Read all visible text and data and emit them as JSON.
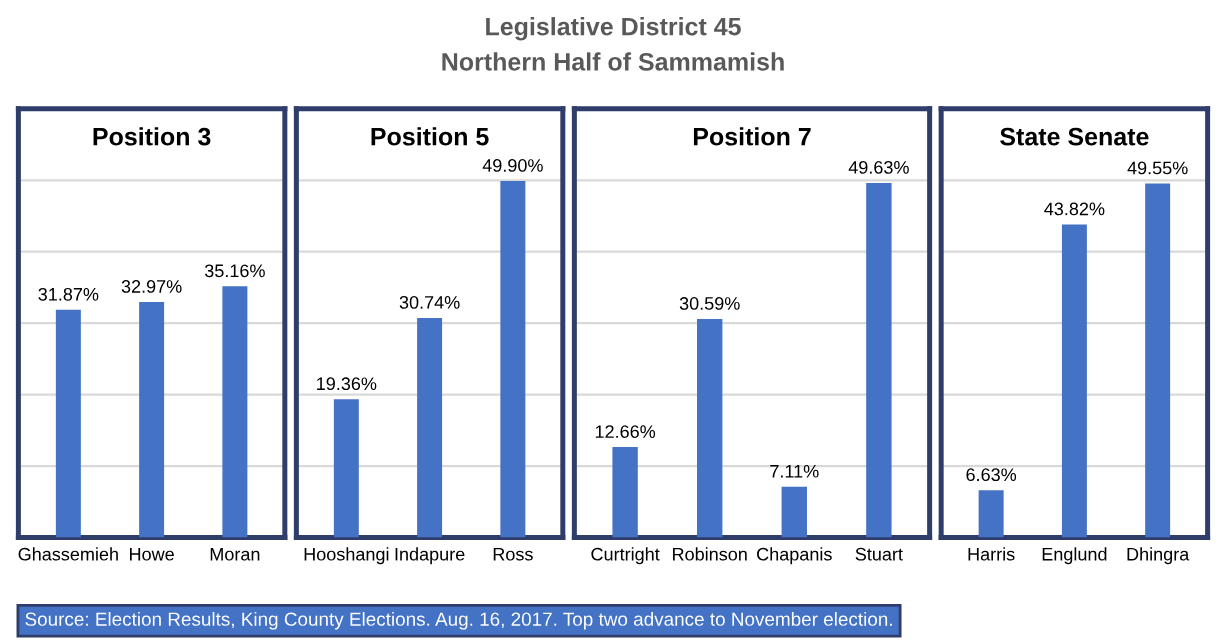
{
  "chart_data": [
    {
      "type": "bar",
      "title": "Position 3",
      "categories": [
        "Ghassemieh",
        "Howe",
        "Moran"
      ],
      "values": [
        31.87,
        32.97,
        35.16
      ],
      "value_labels": [
        "31.87%",
        "32.97%",
        "35.16%"
      ],
      "color": "#4472c4",
      "ylim": [
        0,
        60
      ],
      "yticks": [
        {
          "value": 0,
          "label": null
        },
        {
          "value": 10,
          "label": null
        },
        {
          "value": 20,
          "label": null
        },
        {
          "value": 30,
          "label": null
        },
        {
          "value": 40,
          "label": null
        },
        {
          "value": 50,
          "label": null
        }
      ],
      "tick_labels": "x",
      "grid": "y",
      "annotations": [
        "Legislative District 45",
        "Northern Half of Sammamish"
      ]
    },
    {
      "type": "bar",
      "title": "Position 5",
      "categories": [
        "Hooshangi",
        "Indapure",
        "Ross"
      ],
      "values": [
        19.36,
        30.74,
        49.9
      ],
      "value_labels": [
        "19.36%",
        "30.74%",
        "49.90%"
      ],
      "color": "#4472c4",
      "ylim": [
        0,
        60
      ],
      "yticks": [
        {
          "value": 0,
          "label": null
        },
        {
          "value": 10,
          "label": null
        },
        {
          "value": 20,
          "label": null
        },
        {
          "value": 30,
          "label": null
        },
        {
          "value": 40,
          "label": null
        },
        {
          "value": 50,
          "label": null
        }
      ],
      "tick_labels": "x",
      "grid": "y"
    },
    {
      "type": "bar",
      "title": "Position 7",
      "categories": [
        "Curtright",
        "Robinson",
        "Chapanis",
        "Stuart"
      ],
      "values": [
        12.66,
        30.59,
        7.11,
        49.63
      ],
      "value_labels": [
        "12.66%",
        "30.59%",
        "7.11%",
        "49.63%"
      ],
      "color": "#4472c4",
      "ylim": [
        0,
        60
      ],
      "yticks": [
        {
          "value": 0,
          "label": null
        },
        {
          "value": 10,
          "label": null
        },
        {
          "value": 20,
          "label": null
        },
        {
          "value": 30,
          "label": null
        },
        {
          "value": 40,
          "label": null
        },
        {
          "value": 50,
          "label": null
        }
      ],
      "tick_labels": "x",
      "grid": "y"
    },
    {
      "type": "bar",
      "title": "State Senate",
      "categories": [
        "Harris",
        "Englund",
        "Dhingra"
      ],
      "values": [
        6.63,
        43.82,
        49.55
      ],
      "value_labels": [
        "6.63%",
        "43.82%",
        "49.55%"
      ],
      "color": "#4472c4",
      "ylim": [
        0,
        60
      ],
      "yticks": [
        {
          "value": 0,
          "label": null
        },
        {
          "value": 10,
          "label": null
        },
        {
          "value": 20,
          "label": null
        },
        {
          "value": 30,
          "label": null
        },
        {
          "value": 40,
          "label": null
        },
        {
          "value": 50,
          "label": null
        }
      ],
      "tick_labels": "x",
      "grid": "y",
      "annotations": [
        "Source: Election Results, King County Elections. Aug. 16, 2017. Top two advance to November election."
      ]
    }
  ]
}
